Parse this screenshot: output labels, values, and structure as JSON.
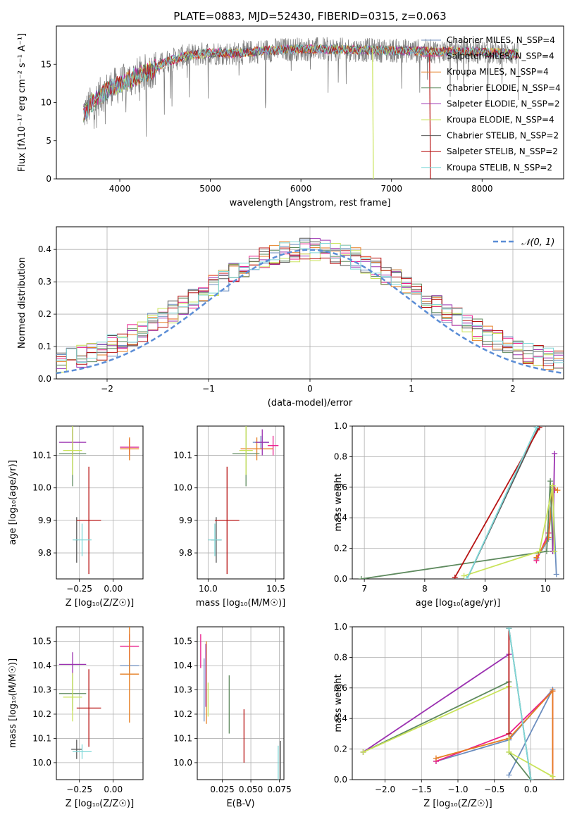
{
  "title": "PLATE=0883, MJD=52430, FIBERID=0315, z=0.063",
  "colors": {
    "data": "#808080",
    "chabrier_miles": "#6c8ebf",
    "salpeter_miles": "#e91e8c",
    "kroupa_miles": "#e67e22",
    "chabrier_elodie": "#5e8a5e",
    "salpeter_elodie": "#9b30b0",
    "kroupa_elodie": "#c9e35a",
    "chabrier_stelib": "#555555",
    "salpeter_stelib": "#b81414",
    "kroupa_stelib": "#7fd8d8",
    "normal_curve": "#5b8dd6"
  },
  "legend_labels": [
    "Chabrier MILES, N_SSP=4",
    "Salpeter MILES, N_SSP=4",
    "Kroupa MILES, N_SSP=4",
    "Chabrier ELODIE, N_SSP=4",
    "Salpeter ELODIE, N_SSP=2",
    "Kroupa ELODIE, N_SSP=4",
    "Chabrier STELIB, N_SSP=2",
    "Salpeter STELIB, N_SSP=2",
    "Kroupa STELIB, N_SSP=2"
  ],
  "chart_data": [
    {
      "id": "spectrum",
      "type": "line",
      "title": "PLATE=0883, MJD=52430, FIBERID=0315, z=0.063",
      "xlabel": "wavelength [Angstrom, rest frame]",
      "ylabel": "Flux [fλ10⁻¹⁷ erg cm⁻² s⁻¹ A⁻¹]",
      "xlim": [
        3300,
        8900
      ],
      "ylim": [
        0,
        20
      ],
      "xticks": [
        4000,
        5000,
        6000,
        7000,
        8000
      ],
      "yticks": [
        0,
        5,
        10,
        15
      ],
      "grid": false,
      "legend_placement": "right",
      "continuum": {
        "x": [
          3600,
          3700,
          3800,
          3900,
          4000,
          4100,
          4200,
          4300,
          4400,
          4500,
          4700,
          5000,
          5300,
          5600,
          6000,
          6500,
          7000,
          7500,
          8000,
          8400
        ],
        "y": [
          8.5,
          10.0,
          11.0,
          12.0,
          12.3,
          13.0,
          13.5,
          14.0,
          14.5,
          15.3,
          16.0,
          16.5,
          16.4,
          16.8,
          17.0,
          16.9,
          16.8,
          16.7,
          16.6,
          16.4
        ]
      }
    },
    {
      "id": "residuals",
      "type": "line",
      "xlabel": "(data-model)/error",
      "ylabel": "Normed distribution",
      "xlim": [
        -2.5,
        2.5
      ],
      "ylim": [
        0,
        0.47
      ],
      "xticks": [
        -2,
        -1,
        0,
        1,
        2
      ],
      "yticks": [
        0.0,
        0.1,
        0.2,
        0.3,
        0.4
      ],
      "grid": true,
      "legend": "𝒩(0, 1)",
      "legend_placement": "top-right",
      "histogram_bin_width": 0.1
    },
    {
      "id": "z_age",
      "type": "scatter",
      "xlabel": "Z [log₁₀(Z/Z☉)]",
      "ylabel": "age  [log₁₀(age/yr)]",
      "xlim": [
        -0.42,
        0.22
      ],
      "ylim": [
        9.72,
        10.19
      ],
      "xticks": [
        -0.25,
        0.0
      ],
      "xtick_labels": [
        "−0.25",
        "0.00"
      ],
      "yticks": [
        9.8,
        9.9,
        10.0,
        10.1
      ],
      "grid": true,
      "error_bars": [
        {
          "series": "chabrier_miles",
          "x": 0.12,
          "dx": 0.07,
          "y": 10.125,
          "dy": 0.02
        },
        {
          "series": "salpeter_miles",
          "x": 0.12,
          "dx": 0.07,
          "y": 10.125,
          "dy": 0.025
        },
        {
          "series": "kroupa_miles",
          "x": 0.12,
          "dx": 0.07,
          "y": 10.12,
          "dy": 0.035
        },
        {
          "series": "chabrier_elodie",
          "x": -0.3,
          "dx": 0.1,
          "y": 10.105,
          "dy": 0.1
        },
        {
          "series": "salpeter_elodie",
          "x": -0.3,
          "dx": 0.1,
          "y": 10.14,
          "dy": 0.04
        },
        {
          "series": "kroupa_elodie",
          "x": -0.3,
          "dx": 0.07,
          "y": 10.115,
          "dy": 0.075
        },
        {
          "series": "chabrier_stelib",
          "x": -0.27,
          "dx": 0.01,
          "y": 9.84,
          "dy": 0.07
        },
        {
          "series": "salpeter_stelib",
          "x": -0.18,
          "dx": 0.09,
          "y": 9.9,
          "dy": 0.165
        },
        {
          "series": "kroupa_stelib",
          "x": -0.23,
          "dx": 0.07,
          "y": 9.84,
          "dy": 0.05
        }
      ]
    },
    {
      "id": "mass_age",
      "type": "scatter",
      "xlabel": "mass [log₁₀(M/M☉)]",
      "ylabel": "",
      "xlim": [
        9.92,
        10.56
      ],
      "ylim": [
        9.72,
        10.19
      ],
      "xticks": [
        10.0,
        10.5
      ],
      "xtick_labels": [
        "10.0",
        "10.5"
      ],
      "yticks": [
        9.8,
        9.9,
        10.0,
        10.1
      ],
      "grid": true,
      "error_bars": [
        {
          "series": "chabrier_miles",
          "x": 10.39,
          "dx": 0.06,
          "y": 10.14,
          "dy": 0.02
        },
        {
          "series": "salpeter_miles",
          "x": 10.48,
          "dx": 0.04,
          "y": 10.13,
          "dy": 0.03
        },
        {
          "series": "kroupa_miles",
          "x": 10.36,
          "dx": 0.12,
          "y": 10.12,
          "dy": 0.035
        },
        {
          "series": "chabrier_elodie",
          "x": 10.28,
          "dx": 0.1,
          "y": 10.105,
          "dy": 0.1
        },
        {
          "series": "salpeter_elodie",
          "x": 10.4,
          "dx": 0.05,
          "y": 10.14,
          "dy": 0.04
        },
        {
          "series": "kroupa_elodie",
          "x": 10.28,
          "dx": 0.05,
          "y": 10.115,
          "dy": 0.075
        },
        {
          "series": "chabrier_stelib",
          "x": 10.06,
          "dx": 0.04,
          "y": 9.84,
          "dy": 0.07
        },
        {
          "series": "salpeter_stelib",
          "x": 10.14,
          "dx": 0.09,
          "y": 9.9,
          "dy": 0.165
        },
        {
          "series": "kroupa_stelib",
          "x": 10.05,
          "dx": 0.05,
          "y": 9.84,
          "dy": 0.05
        }
      ]
    },
    {
      "id": "age_weight",
      "type": "line",
      "xlabel": "age  [log₁₀(age/yr)]",
      "ylabel": "mass weight",
      "xlim": [
        6.8,
        10.3
      ],
      "ylim": [
        0,
        1
      ],
      "xticks": [
        7,
        8,
        9,
        10
      ],
      "yticks": [
        0.0,
        0.2,
        0.4,
        0.6,
        0.8,
        1.0
      ],
      "grid": true,
      "series": [
        {
          "series": "chabrier_miles",
          "x": [
            9.85,
            10.05,
            10.12,
            10.18
          ],
          "y": [
            0.13,
            0.26,
            0.58,
            0.03
          ]
        },
        {
          "series": "salpeter_miles",
          "x": [
            9.85,
            10.05,
            10.12,
            10.15
          ],
          "y": [
            0.12,
            0.3,
            0.58,
            0.58
          ]
        },
        {
          "series": "kroupa_miles",
          "x": [
            9.85,
            10.05,
            10.12,
            10.2
          ],
          "y": [
            0.14,
            0.27,
            0.6,
            0.58
          ]
        },
        {
          "series": "chabrier_elodie",
          "x": [
            6.95,
            10.02,
            10.08,
            10.12
          ],
          "y": [
            0.0,
            0.18,
            0.64,
            0.18
          ]
        },
        {
          "series": "salpeter_elodie",
          "x": [
            10.12,
            10.15
          ],
          "y": [
            0.18,
            0.82
          ]
        },
        {
          "series": "kroupa_elodie",
          "x": [
            8.65,
            9.9,
            10.12,
            10.15
          ],
          "y": [
            0.02,
            0.18,
            0.61,
            0.18
          ]
        },
        {
          "series": "chabrier_stelib",
          "x": [
            8.7,
            9.88
          ],
          "y": [
            0.0,
            0.99
          ]
        },
        {
          "series": "salpeter_stelib",
          "x": [
            8.5,
            9.9
          ],
          "y": [
            0.01,
            0.99
          ]
        },
        {
          "series": "kroupa_stelib",
          "x": [
            8.7,
            9.85
          ],
          "y": [
            0.0,
            0.99
          ]
        }
      ]
    },
    {
      "id": "z_mass",
      "type": "scatter",
      "xlabel": "Z [log₁₀(Z/Z☉)]",
      "ylabel": "mass [log₁₀(M/M☉)]",
      "xlim": [
        -0.42,
        0.22
      ],
      "ylim": [
        9.93,
        10.56
      ],
      "xticks": [
        -0.25,
        0.0
      ],
      "xtick_labels": [
        "−0.25",
        "0.00"
      ],
      "yticks": [
        10.0,
        10.1,
        10.2,
        10.3,
        10.4,
        10.5
      ],
      "grid": true,
      "error_bars": [
        {
          "series": "chabrier_miles",
          "x": 0.12,
          "dx": 0.07,
          "y": 10.4,
          "dy": 0.03
        },
        {
          "series": "salpeter_miles",
          "x": 0.12,
          "dx": 0.07,
          "y": 10.48,
          "dy": 0.05
        },
        {
          "series": "kroupa_miles",
          "x": 0.12,
          "dx": 0.07,
          "y": 10.365,
          "dy": 0.2
        },
        {
          "series": "chabrier_elodie",
          "x": -0.3,
          "dx": 0.1,
          "y": 10.285,
          "dy": 0.07
        },
        {
          "series": "salpeter_elodie",
          "x": -0.3,
          "dx": 0.1,
          "y": 10.405,
          "dy": 0.05
        },
        {
          "series": "kroupa_elodie",
          "x": -0.3,
          "dx": 0.07,
          "y": 10.27,
          "dy": 0.1
        },
        {
          "series": "chabrier_stelib",
          "x": -0.27,
          "dx": 0.04,
          "y": 10.055,
          "dy": 0.04
        },
        {
          "series": "salpeter_stelib",
          "x": -0.18,
          "dx": 0.09,
          "y": 10.225,
          "dy": 0.16
        },
        {
          "series": "kroupa_stelib",
          "x": -0.23,
          "dx": 0.07,
          "y": 10.045,
          "dy": 0.03
        }
      ]
    },
    {
      "id": "ebv_mass",
      "type": "scatter",
      "xlabel": "E(B-V)",
      "ylabel": "",
      "xlim": [
        0.003,
        0.079
      ],
      "ylim": [
        9.93,
        10.56
      ],
      "xticks": [
        0.025,
        0.05,
        0.075
      ],
      "xtick_labels": [
        "0.025",
        "0.050",
        "0.075"
      ],
      "yticks": [
        10.0,
        10.1,
        10.2,
        10.3,
        10.4,
        10.5
      ],
      "grid": true,
      "error_bars": [
        {
          "series": "chabrier_miles",
          "x": 0.009,
          "dx": 0,
          "y": 10.3,
          "dy": 0.13
        },
        {
          "series": "salpeter_miles",
          "x": 0.006,
          "dx": 0,
          "y": 10.46,
          "dy": 0.07
        },
        {
          "series": "kroupa_miles",
          "x": 0.011,
          "dx": 0,
          "y": 10.33,
          "dy": 0.17
        },
        {
          "series": "chabrier_elodie",
          "x": 0.031,
          "dx": 0,
          "y": 10.24,
          "dy": 0.12
        },
        {
          "series": "salpeter_elodie",
          "x": 0.0105,
          "dx": 0,
          "y": 10.36,
          "dy": 0.13
        },
        {
          "series": "kroupa_elodie",
          "x": 0.0125,
          "dx": 0,
          "y": 10.26,
          "dy": 0.07
        },
        {
          "series": "chabrier_stelib",
          "x": 0.076,
          "dx": 0,
          "y": 10.0,
          "dy": 0.09
        },
        {
          "series": "salpeter_stelib",
          "x": 0.044,
          "dx": 0,
          "y": 10.11,
          "dy": 0.11
        },
        {
          "series": "kroupa_stelib",
          "x": 0.074,
          "dx": 0,
          "y": 9.99,
          "dy": 0.08
        }
      ]
    },
    {
      "id": "z_weight",
      "type": "line",
      "xlabel": "Z [log₁₀(Z/Z☉)]",
      "ylabel": "mass weight",
      "xlim": [
        -2.45,
        0.45
      ],
      "ylim": [
        0,
        1
      ],
      "xticks": [
        -2.0,
        -1.5,
        -1.0,
        -0.5,
        0.0
      ],
      "xtick_labels": [
        "−2.0",
        "−1.5",
        "−1.0",
        "−0.5",
        "0.0"
      ],
      "yticks": [
        0.0,
        0.2,
        0.4,
        0.6,
        0.8,
        1.0
      ],
      "grid": true,
      "series": [
        {
          "series": "chabrier_miles",
          "x": [
            -1.3,
            -0.3,
            0.3,
            -0.3
          ],
          "y": [
            0.12,
            0.26,
            0.59,
            0.03
          ]
        },
        {
          "series": "salpeter_miles",
          "x": [
            -1.3,
            -0.3,
            0.3,
            0.3
          ],
          "y": [
            0.12,
            0.3,
            0.58,
            0.0
          ]
        },
        {
          "series": "kroupa_miles",
          "x": [
            -1.3,
            -0.3,
            0.3,
            0.3
          ],
          "y": [
            0.14,
            0.27,
            0.58,
            0.0
          ]
        },
        {
          "series": "chabrier_elodie",
          "x": [
            -2.3,
            -0.3,
            -0.3,
            0.0
          ],
          "y": [
            0.18,
            0.64,
            0.18,
            0.0
          ]
        },
        {
          "series": "salpeter_elodie",
          "x": [
            -2.3,
            -0.3
          ],
          "y": [
            0.18,
            0.82
          ]
        },
        {
          "series": "kroupa_elodie",
          "x": [
            -2.3,
            -0.3,
            -0.3,
            0.3
          ],
          "y": [
            0.18,
            0.61,
            0.18,
            0.02
          ]
        },
        {
          "series": "chabrier_stelib",
          "x": [
            -0.3,
            0.0
          ],
          "y": [
            0.99,
            0.0
          ]
        },
        {
          "series": "salpeter_stelib",
          "x": [
            -0.3,
            -0.3
          ],
          "y": [
            0.99,
            0.3
          ]
        },
        {
          "series": "kroupa_stelib",
          "x": [
            -0.3,
            0.0
          ],
          "y": [
            0.99,
            0.0
          ]
        }
      ]
    }
  ]
}
